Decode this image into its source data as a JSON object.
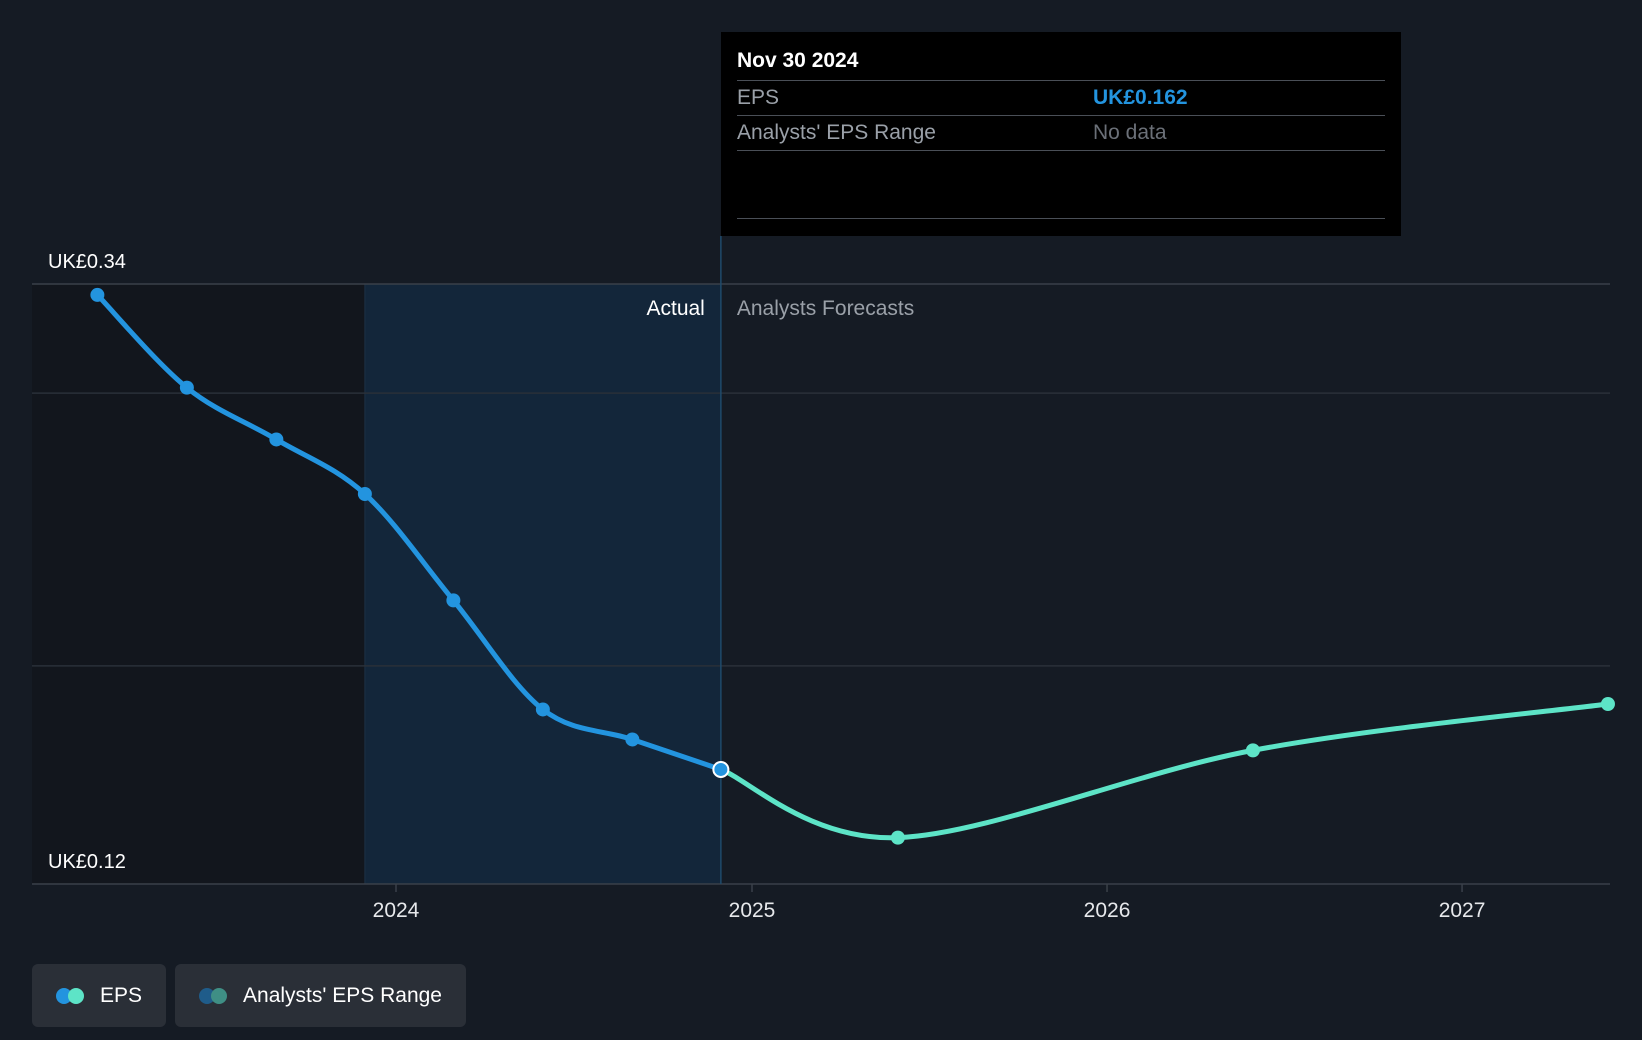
{
  "chart_data": {
    "type": "line",
    "x_ticks": [
      "2024",
      "2025",
      "2026",
      "2027"
    ],
    "ylim": [
      0.12,
      0.34
    ],
    "y_labels": {
      "max": "UK£0.34",
      "min": "UK£0.12"
    },
    "divider_labels": {
      "actual": "Actual",
      "forecast": "Analysts Forecasts"
    },
    "series": [
      {
        "name": "EPS",
        "segment": "actual",
        "color": "#2394df",
        "points": [
          [
            "2023-02-28",
            0.336
          ],
          [
            "2023-05-31",
            0.302
          ],
          [
            "2023-08-31",
            0.283
          ],
          [
            "2023-11-30",
            0.263
          ],
          [
            "2024-02-29",
            0.224
          ],
          [
            "2024-05-31",
            0.184
          ],
          [
            "2024-08-31",
            0.173
          ],
          [
            "2024-11-30",
            0.162
          ]
        ]
      },
      {
        "name": "EPS",
        "segment": "forecast",
        "color": "#5de4c7",
        "points": [
          [
            "2024-11-30",
            0.162
          ],
          [
            "2025-05-31",
            0.137
          ],
          [
            "2026-05-31",
            0.169
          ],
          [
            "2027-05-31",
            0.186
          ]
        ]
      }
    ],
    "highlight_point": [
      "2024-11-30",
      0.162
    ],
    "grid": true
  },
  "tooltip": {
    "date": "Nov 30 2024",
    "rows": [
      {
        "label": "EPS",
        "value": "UK£0.162"
      },
      {
        "label": "Analysts' EPS Range",
        "value": "No data"
      }
    ]
  },
  "legend": {
    "items": [
      {
        "label": "EPS",
        "colors": [
          "#2394df",
          "#5de4c7"
        ]
      },
      {
        "label": "Analysts' EPS Range",
        "colors": [
          "#1f5c8a",
          "#3f8f85"
        ]
      }
    ]
  }
}
